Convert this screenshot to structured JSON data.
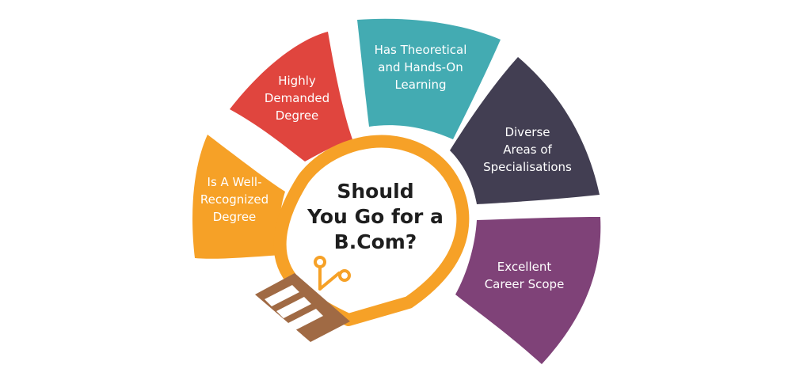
{
  "center": {
    "lines": [
      "Should",
      "You Go for a",
      "B.Com?"
    ]
  },
  "segments": [
    {
      "id": "recognized",
      "lines": [
        "Is A Well-",
        "Recognized",
        "Degree"
      ],
      "color": "#f6a127"
    },
    {
      "id": "demanded",
      "lines": [
        "Highly",
        "Demanded",
        "Degree"
      ],
      "color": "#e0453e"
    },
    {
      "id": "theoretical",
      "lines": [
        "Has Theoretical",
        "and Hands-On",
        "Learning"
      ],
      "color": "#43abb2"
    },
    {
      "id": "specialisations",
      "lines": [
        "Diverse",
        "Areas of",
        "Specialisations"
      ],
      "color": "#423e52"
    },
    {
      "id": "career",
      "lines": [
        "Excellent",
        "Career Scope"
      ],
      "color": "#7f4278"
    }
  ],
  "colors": {
    "bulb": "#f6a127",
    "base": "#a06a44",
    "filament": "#f6a127"
  },
  "icons": {
    "bulb": "lightbulb-icon",
    "filament": "filament-icon"
  }
}
